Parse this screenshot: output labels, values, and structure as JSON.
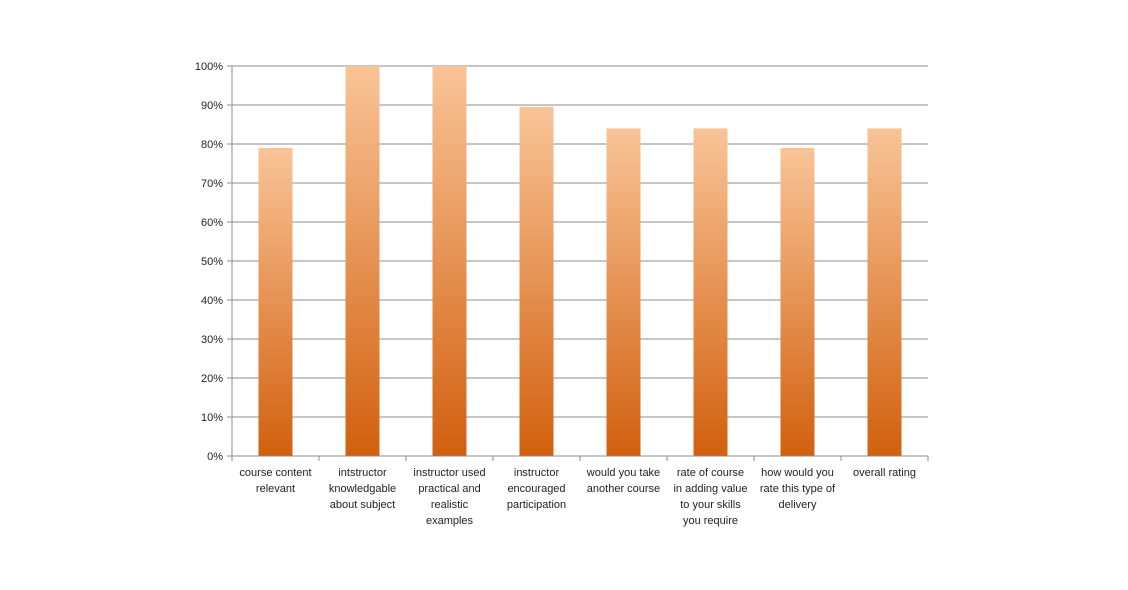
{
  "chart_data": {
    "type": "bar",
    "categories": [
      [
        "course content",
        "relevant"
      ],
      [
        "intstructor",
        "knowledgable",
        "about subject"
      ],
      [
        "instructor used",
        "practical and",
        "realistic",
        "examples"
      ],
      [
        "instructor",
        "encouraged",
        "participation"
      ],
      [
        "would you take",
        "another course"
      ],
      [
        "rate of course",
        "in adding value",
        "to your skills",
        "you require"
      ],
      [
        "how would you",
        "rate this type of",
        "delivery"
      ],
      [
        "overall rating"
      ]
    ],
    "values": [
      79,
      100,
      100,
      89.5,
      84,
      84,
      79,
      84
    ],
    "ylim": [
      0,
      100
    ],
    "yticks": [
      0,
      10,
      20,
      30,
      40,
      50,
      60,
      70,
      80,
      90,
      100
    ],
    "ytick_labels": [
      "0%",
      "10%",
      "20%",
      "30%",
      "40%",
      "50%",
      "60%",
      "70%",
      "80%",
      "90%",
      "100%"
    ],
    "grid": true,
    "legend": "none",
    "colors": {
      "bar_top": "#f9c497",
      "bar_bottom": "#d2600e",
      "grid": "#8c8c8c",
      "axis": "#8c8c8c",
      "text": "#222222"
    }
  }
}
